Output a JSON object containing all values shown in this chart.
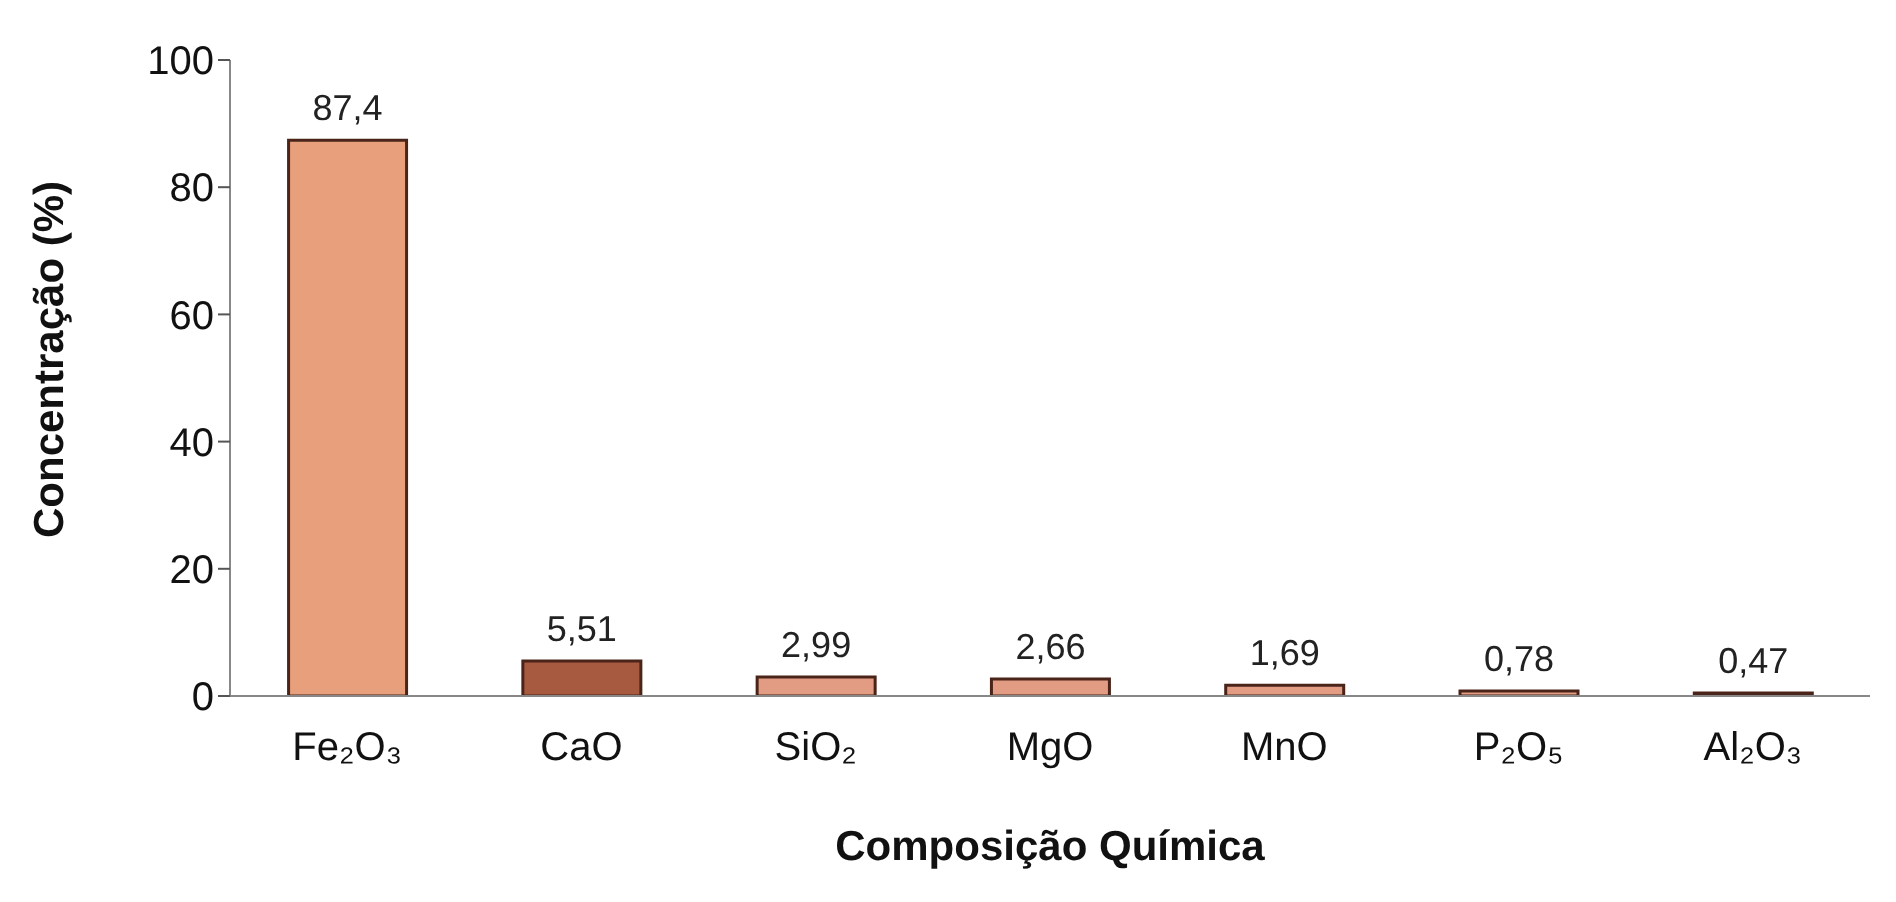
{
  "chart_data": {
    "type": "bar",
    "xlabel": "Composição Química",
    "ylabel": "Concentração (%)",
    "categories": [
      "Fe₂O₃",
      "CaO",
      "SiO₂",
      "MgO",
      "MnO",
      "P₂O₅",
      "Al₂O₃"
    ],
    "values": [
      87.4,
      5.51,
      2.99,
      2.66,
      1.69,
      0.78,
      0.47
    ],
    "colors": [
      "#e8a07c",
      "#a85a40",
      "#e39c84",
      "#e39c84",
      "#e39c84",
      "#e39c84",
      "#e39c84"
    ],
    "value_labels": [
      "87,4",
      "5,51",
      "2,99",
      "2,66",
      "1,69",
      "0,78",
      "0,47"
    ],
    "ylim": [
      0,
      100
    ],
    "yticks": [
      0,
      20,
      40,
      60,
      80,
      100
    ],
    "grid": false,
    "legend": false
  }
}
